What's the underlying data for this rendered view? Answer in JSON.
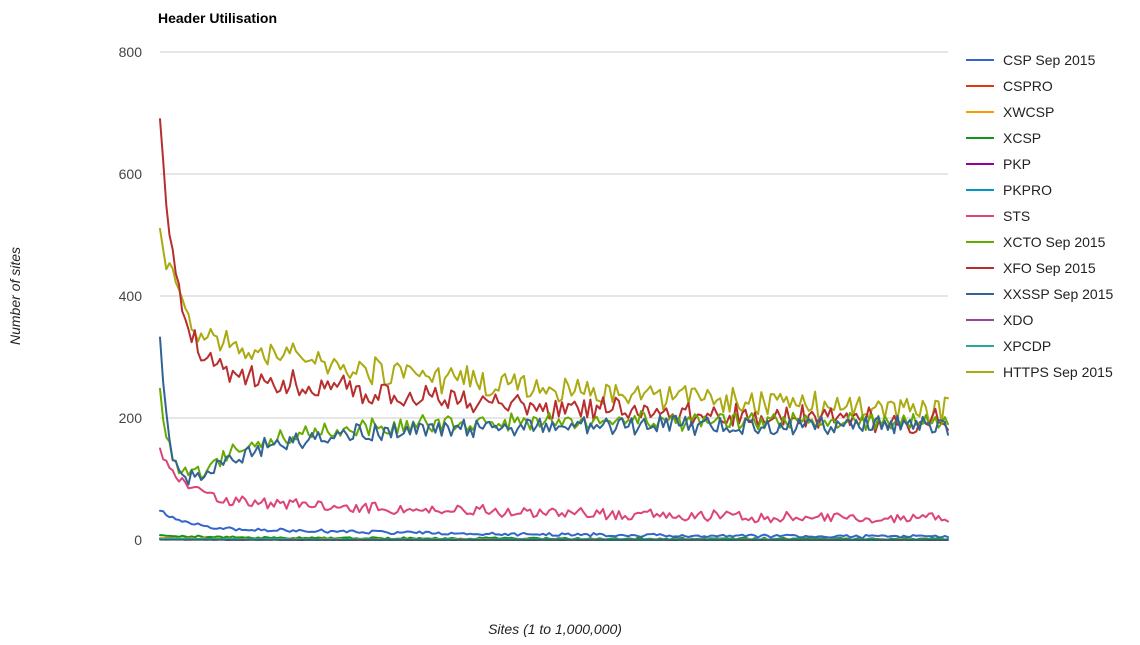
{
  "chart_data": {
    "type": "line",
    "title": "Header Utilisation",
    "xlabel": "Sites (1 to 1,000,000)",
    "ylabel": "Number of sites",
    "ylim": [
      0,
      800
    ],
    "yticks": [
      0,
      200,
      400,
      600,
      800
    ],
    "x_points": 250,
    "legend_position": "right",
    "series": [
      {
        "name": "CSP Sep 2015",
        "color": "#3366cc",
        "start": 48,
        "knee": 20,
        "end": 3,
        "decay": 8,
        "noise": 2.5,
        "seed": 11
      },
      {
        "name": "CSPRO",
        "color": "#dc3912",
        "start": 2,
        "knee": 1,
        "end": 0.5,
        "decay": 20,
        "noise": 0.6,
        "seed": 12
      },
      {
        "name": "XWCSP",
        "color": "#ff9900",
        "start": 3,
        "knee": 1.5,
        "end": 0.5,
        "decay": 20,
        "noise": 0.8,
        "seed": 13
      },
      {
        "name": "XCSP",
        "color": "#109618",
        "start": 8,
        "knee": 4,
        "end": 1.5,
        "decay": 15,
        "noise": 1.5,
        "seed": 14
      },
      {
        "name": "PKP",
        "color": "#990099",
        "start": 1,
        "knee": 0.5,
        "end": 0.3,
        "decay": 20,
        "noise": 0.4,
        "seed": 15
      },
      {
        "name": "PKPRO",
        "color": "#0099c6",
        "start": 1,
        "knee": 0.5,
        "end": 0.2,
        "decay": 20,
        "noise": 0.3,
        "seed": 16
      },
      {
        "name": "STS",
        "color": "#dd4477",
        "start": 150,
        "knee": 70,
        "end": 30,
        "decay": 6,
        "noise": 8,
        "seed": 17
      },
      {
        "name": "XCTO Sep 2015",
        "color": "#66aa00",
        "start": 248,
        "knee": 115,
        "end": 195,
        "decay": 4,
        "noise": 14,
        "seed": 18,
        "rise": true
      },
      {
        "name": "XFO Sep 2015",
        "color": "#b82e2e",
        "start": 690,
        "knee": 290,
        "end": 180,
        "decay": 5,
        "noise": 18,
        "seed": 19
      },
      {
        "name": "XXSSP Sep 2015",
        "color": "#316395",
        "start": 332,
        "knee": 100,
        "end": 188,
        "decay": 4,
        "noise": 14,
        "seed": 20,
        "rise": true
      },
      {
        "name": "XDO",
        "color": "#994499",
        "start": 2,
        "knee": 1,
        "end": 0.5,
        "decay": 20,
        "noise": 0.5,
        "seed": 21
      },
      {
        "name": "XPCDP",
        "color": "#22aa99",
        "start": 2,
        "knee": 1,
        "end": 0.4,
        "decay": 20,
        "noise": 0.5,
        "seed": 22
      },
      {
        "name": "HTTPS Sep 2015",
        "color": "#aaaa11",
        "start": 510,
        "knee": 340,
        "end": 195,
        "decay": 6,
        "noise": 20,
        "seed": 23
      }
    ]
  }
}
